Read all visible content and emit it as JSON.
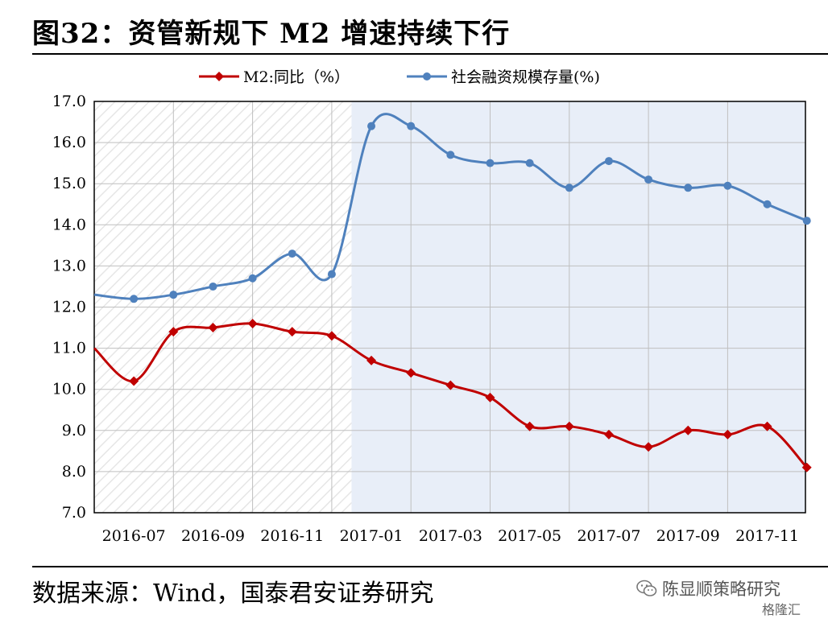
{
  "header": {
    "title": "图32：资管新规下 M2 增速持续下行"
  },
  "footer": {
    "source": "数据来源：Wind，国泰君安证券研究",
    "wechat_account": "陈显顺策略研究",
    "watermark": "格隆汇"
  },
  "colors": {
    "m2": "#C00000",
    "social_financing": "#4F81BD",
    "shade": "#E8EEF8",
    "grid": "#BFBFBF"
  },
  "icons": {
    "wechat": "wechat-icon",
    "gelonghui": "gelonghui-logo-icon"
  },
  "chart_data": {
    "type": "line",
    "x": [
      "2016-06",
      "2016-07",
      "2016-08",
      "2016-09",
      "2016-10",
      "2016-11",
      "2016-12",
      "2017-01",
      "2017-02",
      "2017-03",
      "2017-04",
      "2017-05",
      "2017-06",
      "2017-07",
      "2017-08",
      "2017-09",
      "2017-10",
      "2017-11",
      "2017-12"
    ],
    "x_tick_labels": [
      "2016-07",
      "2016-09",
      "2016-11",
      "2017-01",
      "2017-03",
      "2017-05",
      "2017-07",
      "2017-09",
      "2017-11"
    ],
    "series": [
      {
        "name": "M2:同比（%）",
        "values": [
          11.0,
          10.2,
          11.4,
          11.5,
          11.6,
          11.4,
          11.3,
          10.7,
          10.4,
          10.1,
          9.8,
          9.1,
          9.1,
          8.9,
          8.6,
          9.0,
          8.9,
          9.1,
          8.1
        ]
      },
      {
        "name": "社会融资规模存量(%)",
        "values": [
          12.3,
          12.2,
          12.3,
          12.5,
          12.7,
          13.3,
          12.8,
          16.4,
          16.4,
          15.7,
          15.5,
          15.5,
          14.9,
          15.55,
          15.1,
          14.9,
          14.95,
          14.5,
          14.1
        ]
      }
    ],
    "ylim": [
      7.0,
      17.0
    ],
    "y_ticks": [
      "7.0",
      "8.0",
      "9.0",
      "10.0",
      "11.0",
      "12.0",
      "13.0",
      "14.0",
      "15.0",
      "16.0",
      "17.0"
    ],
    "shaded_from": "2016-12",
    "grid": true,
    "legend": "top"
  }
}
